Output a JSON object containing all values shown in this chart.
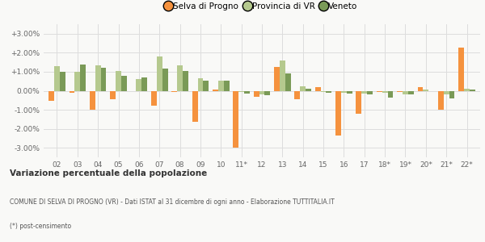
{
  "categories": [
    "02",
    "03",
    "04",
    "05",
    "06",
    "07",
    "08",
    "09",
    "10",
    "11*",
    "12",
    "13",
    "14",
    "15",
    "16",
    "17",
    "18*",
    "19*",
    "20*",
    "21*",
    "22*"
  ],
  "selva": [
    -0.55,
    -0.1,
    -1.0,
    -0.45,
    0.0,
    -0.8,
    -0.05,
    -1.65,
    0.07,
    -3.0,
    -0.3,
    1.25,
    -0.45,
    0.2,
    -2.35,
    -1.2,
    -0.05,
    -0.05,
    0.2,
    -1.0,
    2.25
  ],
  "provincia": [
    1.3,
    1.0,
    1.35,
    1.05,
    0.6,
    1.8,
    1.35,
    0.65,
    0.55,
    -0.05,
    -0.2,
    1.58,
    0.25,
    -0.05,
    -0.1,
    -0.15,
    -0.1,
    -0.2,
    0.05,
    -0.2,
    0.12
  ],
  "veneto": [
    1.0,
    1.4,
    1.2,
    0.8,
    0.7,
    1.15,
    1.05,
    0.55,
    0.55,
    -0.15,
    -0.25,
    0.9,
    0.1,
    -0.1,
    -0.15,
    -0.2,
    -0.35,
    -0.2,
    0.0,
    -0.4,
    0.05
  ],
  "selva_color": "#f5923e",
  "provincia_color": "#b5c98e",
  "veneto_color": "#7a9a57",
  "legend_labels": [
    "Selva di Progno",
    "Provincia di VR",
    "Veneto"
  ],
  "title": "Variazione percentuale della popolazione",
  "subtitle": "COMUNE DI SELVA DI PROGNO (VR) - Dati ISTAT al 31 dicembre di ogni anno - Elaborazione TUTTITALIA.IT",
  "footnote": "(*) post-censimento",
  "yticks": [
    -3.0,
    -2.0,
    -1.0,
    0.0,
    1.0,
    2.0,
    3.0
  ],
  "ytick_labels": [
    "-3.00%",
    "-2.00%",
    "-1.00%",
    "0.00%",
    "+1.00%",
    "+2.00%",
    "+3.00%"
  ],
  "ylim": [
    -3.5,
    3.5
  ],
  "bg_color": "#f9f9f7",
  "grid_color": "#dddddd"
}
